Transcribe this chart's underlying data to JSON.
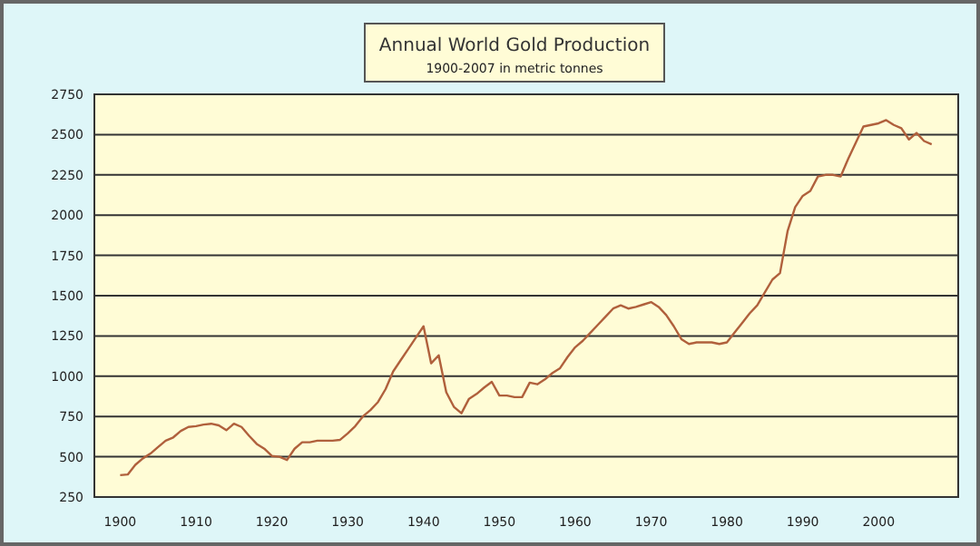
{
  "chart_data": {
    "type": "line",
    "title": "Annual World Gold Production",
    "subtitle": "1900-2007 in metric tonnes",
    "x": [
      1900,
      1901,
      1902,
      1903,
      1904,
      1905,
      1906,
      1907,
      1908,
      1909,
      1910,
      1911,
      1912,
      1913,
      1914,
      1915,
      1916,
      1917,
      1918,
      1919,
      1920,
      1921,
      1922,
      1923,
      1924,
      1925,
      1926,
      1927,
      1928,
      1929,
      1930,
      1931,
      1932,
      1933,
      1934,
      1935,
      1936,
      1937,
      1938,
      1939,
      1940,
      1941,
      1942,
      1943,
      1944,
      1945,
      1946,
      1947,
      1948,
      1949,
      1950,
      1951,
      1952,
      1953,
      1954,
      1955,
      1956,
      1957,
      1958,
      1959,
      1960,
      1961,
      1962,
      1963,
      1964,
      1965,
      1966,
      1967,
      1968,
      1969,
      1970,
      1971,
      1972,
      1973,
      1974,
      1975,
      1976,
      1977,
      1978,
      1979,
      1980,
      1981,
      1982,
      1983,
      1984,
      1985,
      1986,
      1987,
      1988,
      1989,
      1990,
      1991,
      1992,
      1993,
      1994,
      1995,
      1996,
      1997,
      1998,
      1999,
      2000,
      2001,
      2002,
      2003,
      2004,
      2005,
      2006,
      2007
    ],
    "series": [
      {
        "color": "#b0603c",
        "values": [
          386,
          390,
          450,
          490,
          520,
          560,
          600,
          620,
          660,
          685,
          690,
          700,
          705,
          695,
          665,
          705,
          685,
          630,
          580,
          550,
          505,
          500,
          480,
          550,
          590,
          590,
          600,
          600,
          600,
          605,
          645,
          690,
          750,
          790,
          840,
          920,
          1030,
          1100,
          1170,
          1240,
          1310,
          1080,
          1130,
          900,
          810,
          770,
          860,
          890,
          930,
          965,
          880,
          880,
          870,
          870,
          960,
          950,
          980,
          1020,
          1050,
          1120,
          1180,
          1220,
          1270,
          1320,
          1370,
          1420,
          1440,
          1420,
          1430,
          1445,
          1460,
          1430,
          1380,
          1310,
          1230,
          1200,
          1210,
          1210,
          1210,
          1200,
          1210,
          1270,
          1330,
          1390,
          1440,
          1520,
          1600,
          1640,
          1900,
          2050,
          2120,
          2150,
          2240,
          2250,
          2250,
          2240,
          2350,
          2450,
          2550,
          2560,
          2570,
          2590,
          2560,
          2540,
          2470,
          2510,
          2460,
          2440
        ]
      }
    ],
    "xlim": [
      1896.6,
      2010.5
    ],
    "xticks": [
      1900,
      1910,
      1920,
      1930,
      1940,
      1950,
      1960,
      1970,
      1980,
      1990,
      2000
    ],
    "ylim": [
      250,
      2750
    ],
    "yticks": [
      250,
      500,
      750,
      1000,
      1250,
      1500,
      1750,
      2000,
      2250,
      2500,
      2750
    ],
    "grid": "y"
  }
}
